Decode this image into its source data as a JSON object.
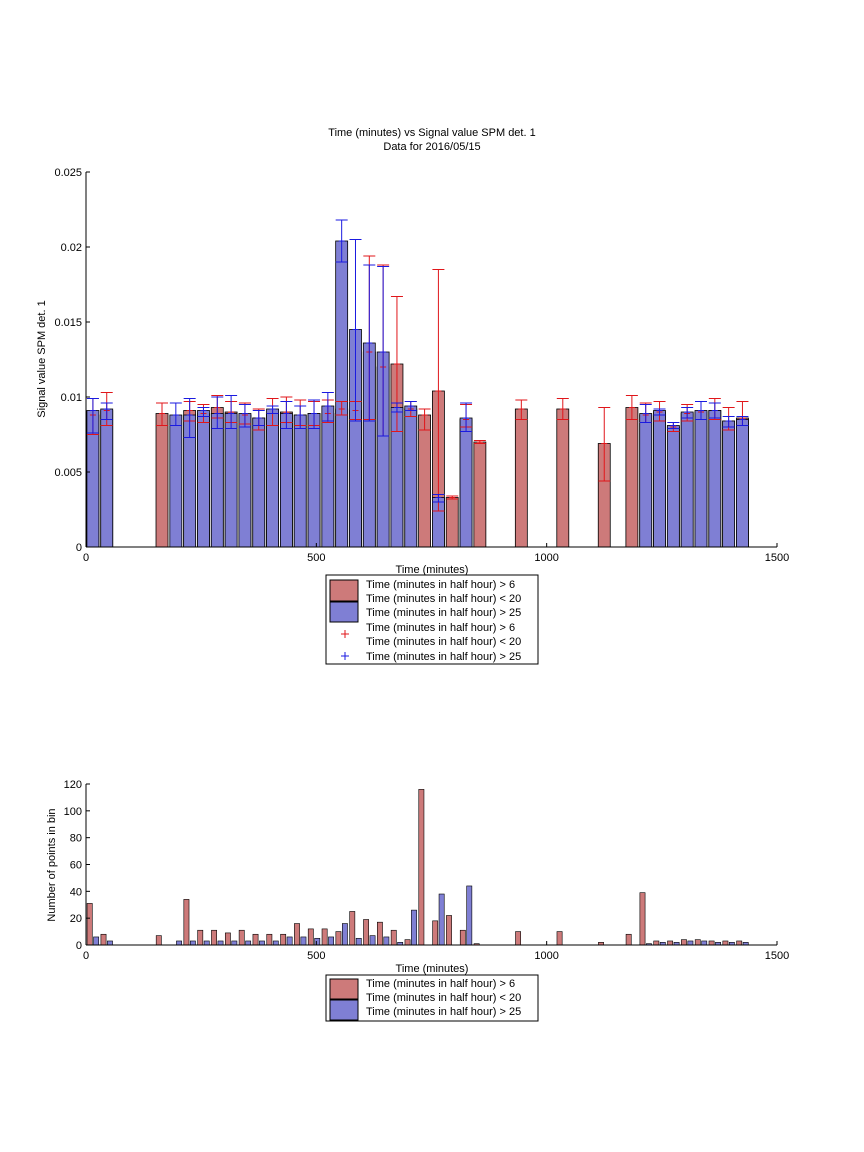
{
  "colors": {
    "red_bar": "#cd7a7a",
    "blue_bar": "#7f7fd4",
    "red_error": "#e0161a",
    "blue_error": "#1a1ae0"
  },
  "chart_data": [
    {
      "type": "bar",
      "title": "Time (minutes) vs Signal value SPM det. 1",
      "subtitle": "Data for 2016/05/15",
      "xlabel": "Time (minutes)",
      "ylabel": "Signal value SPM det. 1",
      "xlim": [
        0,
        1500
      ],
      "ylim": [
        0,
        0.025
      ],
      "xticks": [
        0,
        500,
        1000,
        1500
      ],
      "yticks": [
        0,
        0.005,
        0.01,
        0.015,
        0.02,
        0.025
      ],
      "ytick_labels": [
        "0",
        "0.005",
        "0.01",
        "0.015",
        "0.02",
        "0.025"
      ],
      "grid": false,
      "legend_position": "below plot",
      "series": [
        {
          "name": "Time (minutes in half hour) > 6\nTime (minutes in half hour) < 20",
          "color": "#cd7a7a",
          "bars": [
            {
              "x": 15,
              "value": 0.0088,
              "err_low": 0.0075,
              "err_high": 0.0099
            },
            {
              "x": 45,
              "value": 0.0091,
              "err_low": 0.0081,
              "err_high": 0.0103
            },
            {
              "x": 165,
              "value": 0.0089,
              "err_low": 0.0081,
              "err_high": 0.0096
            },
            {
              "x": 225,
              "value": 0.0091,
              "err_low": 0.0084,
              "err_high": 0.0097
            },
            {
              "x": 255,
              "value": 0.0089,
              "err_low": 0.0083,
              "err_high": 0.0095
            },
            {
              "x": 285,
              "value": 0.0093,
              "err_low": 0.0086,
              "err_high": 0.0101
            },
            {
              "x": 315,
              "value": 0.009,
              "err_low": 0.0083,
              "err_high": 0.0097
            },
            {
              "x": 345,
              "value": 0.0088,
              "err_low": 0.0082,
              "err_high": 0.0096
            },
            {
              "x": 375,
              "value": 0.0086,
              "err_low": 0.0078,
              "err_high": 0.0092
            },
            {
              "x": 405,
              "value": 0.0089,
              "err_low": 0.0081,
              "err_high": 0.0099
            },
            {
              "x": 435,
              "value": 0.009,
              "err_low": 0.0083,
              "err_high": 0.01
            },
            {
              "x": 465,
              "value": 0.0088,
              "err_low": 0.0081,
              "err_high": 0.0098
            },
            {
              "x": 495,
              "value": 0.0089,
              "err_low": 0.0081,
              "err_high": 0.0097
            },
            {
              "x": 525,
              "value": 0.0089,
              "err_low": 0.0083,
              "err_high": 0.0098
            },
            {
              "x": 555,
              "value": 0.0092,
              "err_low": 0.0088,
              "err_high": 0.0097
            },
            {
              "x": 585,
              "value": 0.0091,
              "err_low": 0.0085,
              "err_high": 0.0097
            },
            {
              "x": 615,
              "value": 0.013,
              "err_low": 0.0085,
              "err_high": 0.0194
            },
            {
              "x": 645,
              "value": 0.012,
              "err_low": 0.0074,
              "err_high": 0.0188
            },
            {
              "x": 675,
              "value": 0.0122,
              "err_low": 0.0077,
              "err_high": 0.0167
            },
            {
              "x": 705,
              "value": 0.0092,
              "err_low": 0.0087,
              "err_high": 0.0097
            },
            {
              "x": 735,
              "value": 0.0088,
              "err_low": 0.0078,
              "err_high": 0.0092
            },
            {
              "x": 765,
              "value": 0.0104,
              "err_low": 0.0024,
              "err_high": 0.0185
            },
            {
              "x": 795,
              "value": 0.0033,
              "err_low": 0.0032,
              "err_high": 0.0034
            },
            {
              "x": 825,
              "value": 0.0085,
              "err_low": 0.008,
              "err_high": 0.0095
            },
            {
              "x": 855,
              "value": 0.007,
              "err_low": 0.0069,
              "err_high": 0.0071
            },
            {
              "x": 945,
              "value": 0.0092,
              "err_low": 0.0085,
              "err_high": 0.0098
            },
            {
              "x": 1035,
              "value": 0.0092,
              "err_low": 0.0085,
              "err_high": 0.0099
            },
            {
              "x": 1125,
              "value": 0.0069,
              "err_low": 0.0044,
              "err_high": 0.0093
            },
            {
              "x": 1185,
              "value": 0.0093,
              "err_low": 0.0085,
              "err_high": 0.0101
            },
            {
              "x": 1215,
              "value": 0.0088,
              "err_low": 0.0083,
              "err_high": 0.0096
            },
            {
              "x": 1245,
              "value": 0.009,
              "err_low": 0.0084,
              "err_high": 0.0097
            },
            {
              "x": 1275,
              "value": 0.008,
              "err_low": 0.0077,
              "err_high": 0.0083
            },
            {
              "x": 1305,
              "value": 0.0089,
              "err_low": 0.0084,
              "err_high": 0.0095
            },
            {
              "x": 1335,
              "value": 0.009,
              "err_low": 0.0085,
              "err_high": 0.0097
            },
            {
              "x": 1365,
              "value": 0.0091,
              "err_low": 0.0085,
              "err_high": 0.0099
            },
            {
              "x": 1395,
              "value": 0.0084,
              "err_low": 0.0078,
              "err_high": 0.0093
            },
            {
              "x": 1425,
              "value": 0.0086,
              "err_low": 0.0081,
              "err_high": 0.0097
            }
          ]
        },
        {
          "name": "Time (minutes in half hour) > 25",
          "color": "#7f7fd4",
          "bars": [
            {
              "x": 15,
              "value": 0.0091,
              "err_low": 0.0076,
              "err_high": 0.0099
            },
            {
              "x": 45,
              "value": 0.0092,
              "err_low": 0.0085,
              "err_high": 0.0096
            },
            {
              "x": 195,
              "value": 0.0088,
              "err_low": 0.0081,
              "err_high": 0.0096
            },
            {
              "x": 225,
              "value": 0.0088,
              "err_low": 0.0073,
              "err_high": 0.0099
            },
            {
              "x": 255,
              "value": 0.0091,
              "err_low": 0.0087,
              "err_high": 0.0093
            },
            {
              "x": 285,
              "value": 0.0089,
              "err_low": 0.0079,
              "err_high": 0.01
            },
            {
              "x": 315,
              "value": 0.0089,
              "err_low": 0.0079,
              "err_high": 0.0101
            },
            {
              "x": 345,
              "value": 0.0089,
              "err_low": 0.008,
              "err_high": 0.0095
            },
            {
              "x": 375,
              "value": 0.0086,
              "err_low": 0.0081,
              "err_high": 0.0091
            },
            {
              "x": 405,
              "value": 0.0092,
              "err_low": 0.0089,
              "err_high": 0.0094
            },
            {
              "x": 435,
              "value": 0.0089,
              "err_low": 0.0079,
              "err_high": 0.0097
            },
            {
              "x": 465,
              "value": 0.0088,
              "err_low": 0.0079,
              "err_high": 0.0094
            },
            {
              "x": 495,
              "value": 0.0089,
              "err_low": 0.0079,
              "err_high": 0.0098
            },
            {
              "x": 525,
              "value": 0.0094,
              "err_low": 0.0084,
              "err_high": 0.0103
            },
            {
              "x": 555,
              "value": 0.0204,
              "err_low": 0.019,
              "err_high": 0.0218
            },
            {
              "x": 585,
              "value": 0.0145,
              "err_low": 0.0084,
              "err_high": 0.0205
            },
            {
              "x": 615,
              "value": 0.0136,
              "err_low": 0.0084,
              "err_high": 0.0188
            },
            {
              "x": 645,
              "value": 0.013,
              "err_low": 0.0074,
              "err_high": 0.0187
            },
            {
              "x": 675,
              "value": 0.0093,
              "err_low": 0.009,
              "err_high": 0.0096
            },
            {
              "x": 705,
              "value": 0.0094,
              "err_low": 0.0091,
              "err_high": 0.0097
            },
            {
              "x": 765,
              "value": 0.0033,
              "err_low": 0.003,
              "err_high": 0.0035
            },
            {
              "x": 825,
              "value": 0.0086,
              "err_low": 0.0077,
              "err_high": 0.0096
            },
            {
              "x": 1215,
              "value": 0.0089,
              "err_low": 0.0083,
              "err_high": 0.0095
            },
            {
              "x": 1245,
              "value": 0.0091,
              "err_low": 0.0088,
              "err_high": 0.0092
            },
            {
              "x": 1275,
              "value": 0.0081,
              "err_low": 0.0079,
              "err_high": 0.0083
            },
            {
              "x": 1305,
              "value": 0.009,
              "err_low": 0.0086,
              "err_high": 0.0093
            },
            {
              "x": 1335,
              "value": 0.0091,
              "err_low": 0.0085,
              "err_high": 0.0097
            },
            {
              "x": 1365,
              "value": 0.0091,
              "err_low": 0.0086,
              "err_high": 0.0096
            },
            {
              "x": 1395,
              "value": 0.0084,
              "err_low": 0.008,
              "err_high": 0.0087
            },
            {
              "x": 1425,
              "value": 0.0085,
              "err_low": 0.0081,
              "err_high": 0.0087
            }
          ]
        }
      ],
      "legend": [
        {
          "kind": "patch",
          "color": "#cd7a7a",
          "line1": "Time (minutes in half hour) > 6",
          "line2": "Time (minutes in half hour) < 20"
        },
        {
          "kind": "patch",
          "color": "#7f7fd4",
          "line1": "Time (minutes in half hour) > 25"
        },
        {
          "kind": "marker",
          "color": "#e0161a",
          "line1": "Time (minutes in half hour) > 6",
          "line2": "Time (minutes in half hour) < 20"
        },
        {
          "kind": "marker",
          "color": "#1a1ae0",
          "line1": "Time (minutes in half hour) > 25"
        }
      ]
    },
    {
      "type": "bar",
      "xlabel": "Time (minutes)",
      "ylabel": "Number of points in bin",
      "xlim": [
        0,
        1500
      ],
      "ylim": [
        0,
        120
      ],
      "xticks": [
        0,
        500,
        1000,
        1500
      ],
      "yticks": [
        0,
        20,
        40,
        60,
        80,
        100,
        120
      ],
      "grid": false,
      "legend_position": "below plot",
      "series": [
        {
          "name": "Time (minutes in half hour) > 6\nTime (minutes in half hour) < 20",
          "color": "#cd7a7a",
          "x": [
            8,
            38,
            158,
            218,
            248,
            278,
            308,
            338,
            368,
            398,
            428,
            458,
            488,
            518,
            548,
            578,
            608,
            638,
            668,
            698,
            728,
            758,
            788,
            818,
            848,
            938,
            1028,
            1118,
            1178,
            1208,
            1238,
            1268,
            1298,
            1328,
            1358,
            1388,
            1418
          ],
          "values": [
            31,
            8,
            7,
            34,
            11,
            11,
            9,
            11,
            8,
            8,
            8,
            16,
            12,
            12,
            10,
            25,
            19,
            17,
            11,
            4,
            116,
            18,
            22,
            11,
            1,
            10,
            10,
            2,
            8,
            39,
            3,
            3,
            4,
            4,
            3,
            3,
            3
          ]
        },
        {
          "name": "Time (minutes in half hour) > 25",
          "color": "#7f7fd4",
          "x": [
            22,
            52,
            202,
            232,
            262,
            292,
            322,
            352,
            382,
            412,
            442,
            472,
            502,
            532,
            562,
            592,
            622,
            652,
            682,
            712,
            772,
            832,
            1222,
            1252,
            1282,
            1312,
            1342,
            1372,
            1402,
            1432
          ],
          "values": [
            6,
            3,
            3,
            3,
            3,
            3,
            3,
            3,
            3,
            3,
            6,
            6,
            5,
            6,
            16,
            5,
            7,
            6,
            2,
            26,
            38,
            44,
            1,
            2,
            2,
            3,
            3,
            2,
            2,
            2
          ]
        }
      ],
      "legend": [
        {
          "kind": "patch",
          "color": "#cd7a7a",
          "line1": "Time (minutes in half hour) > 6",
          "line2": "Time (minutes in half hour) < 20"
        },
        {
          "kind": "patch",
          "color": "#7f7fd4",
          "line1": "Time (minutes in half hour) > 25"
        }
      ]
    }
  ]
}
